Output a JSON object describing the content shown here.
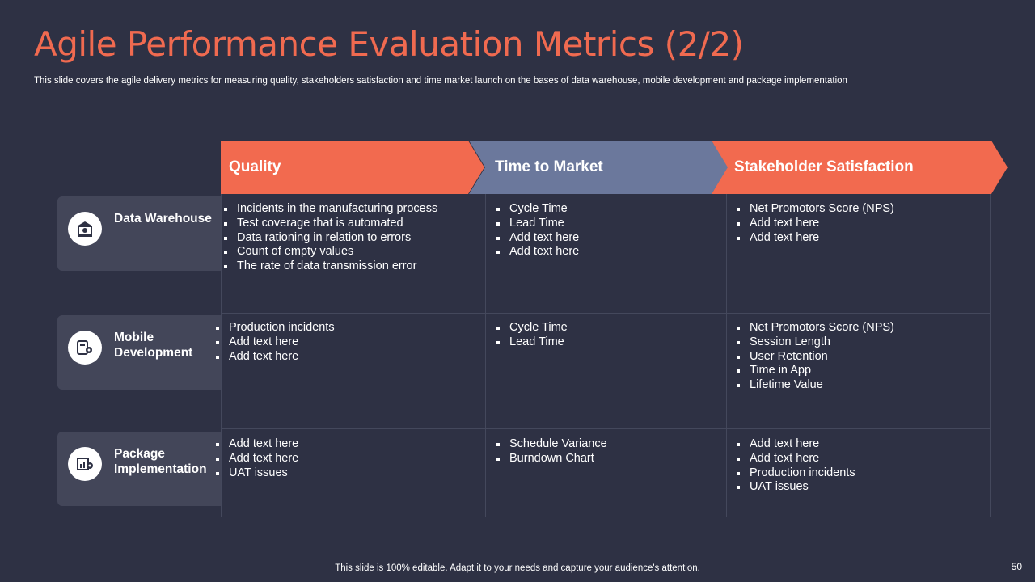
{
  "title": "Agile Performance Evaluation Metrics (2/2)",
  "subtitle": "This slide covers the agile delivery  metrics for  measuring quality,  stakeholders satisfaction and time market launch on the bases of data warehouse,  mobile development  and package implementation",
  "columns": [
    {
      "label": "Quality",
      "color": "#f26a4f"
    },
    {
      "label": "Time to Market",
      "color": "#6b789c"
    },
    {
      "label": "Stakeholder Satisfaction",
      "color": "#f26a4f"
    }
  ],
  "rows": [
    {
      "label": "Data Warehouse",
      "icon": "warehouse-icon",
      "cells": [
        [
          "Incidents in the manufacturing process",
          "Test coverage that is automated",
          "Data rationing in relation to errors",
          "Count of empty values",
          "The rate of data transmission error"
        ],
        [
          "Cycle Time",
          "Lead Time",
          "Add text here",
          "Add text here"
        ],
        [
          "Net Promotors Score (NPS)",
          "Add text here",
          "Add text here"
        ]
      ]
    },
    {
      "label": "Mobile Development",
      "icon": "mobile-gear-icon",
      "cells": [
        [
          "Production incidents",
          "Add text here",
          "Add text here"
        ],
        [
          "Cycle Time",
          "Lead Time"
        ],
        [
          "Net Promotors Score (NPS)",
          "Session Length",
          "User Retention",
          "Time in App",
          "Lifetime Value"
        ]
      ]
    },
    {
      "label": "Package Implementation",
      "icon": "package-settings-icon",
      "cells": [
        [
          "Add text here",
          "Add text here",
          "UAT issues"
        ],
        [
          "Schedule Variance",
          "Burndown Chart"
        ],
        [
          "Add text here",
          "Add text here",
          "Production incidents",
          "UAT issues"
        ]
      ]
    }
  ],
  "footer": "This slide is 100% editable. Adapt it to your needs and capture your audience's attention.",
  "page_number": "50"
}
